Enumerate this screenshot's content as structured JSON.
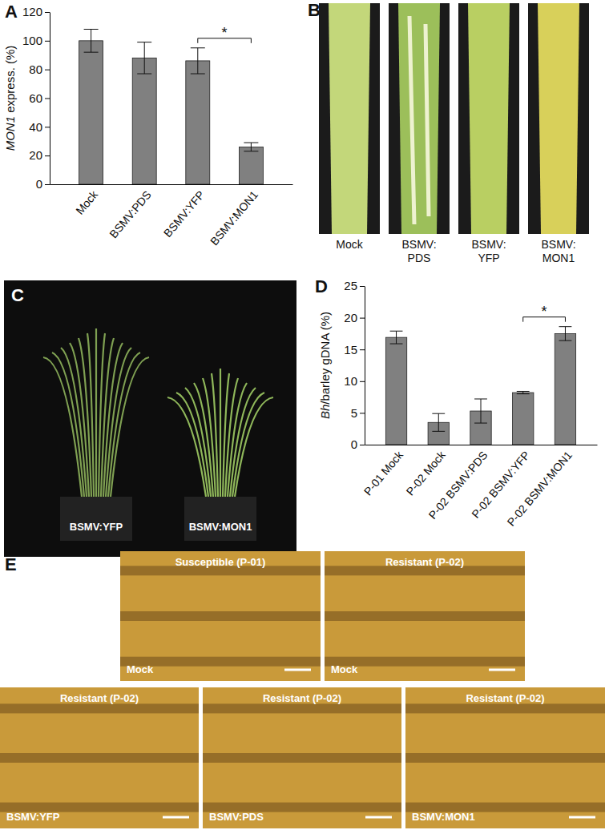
{
  "chart_data": [
    {
      "type": "bar",
      "annotations": [
        {
          "text": "A"
        },
        {
          "text": "*",
          "between": [
            "BSMV:YFP",
            "BSMV:MON1"
          ]
        }
      ],
      "y_label": "MON1 express. (%)",
      "categories": [
        "Mock",
        "BSMV:PDS",
        "BSMV:YFP",
        "BSMV:MON1"
      ],
      "values": [
        100,
        88,
        86,
        26
      ],
      "errors": [
        8,
        11,
        9,
        3
      ],
      "color": "#808080",
      "ylim": [
        0,
        120
      ],
      "yticks": [
        0,
        20,
        40,
        60,
        80,
        100,
        120
      ],
      "grid": false
    },
    {
      "type": "bar",
      "annotations": [
        {
          "text": "D"
        },
        {
          "text": "*",
          "between": [
            "P-02 BSMV:YFP",
            "P-02 BSMV:MON1"
          ]
        }
      ],
      "y_label": "Bh/barley gDNA (%)",
      "categories": [
        "P-01 Mock",
        "P-02 Mock",
        "P-02 BSMV:PDS",
        "P-02 BSMV:YFP",
        "P-02 BSMV:MON1"
      ],
      "values": [
        16.9,
        3.5,
        5.3,
        8.2,
        17.5
      ],
      "errors": [
        1.0,
        1.4,
        1.9,
        0.2,
        1.1
      ],
      "color": "#808080",
      "ylim": [
        0,
        25
      ],
      "yticks": [
        0,
        5,
        10,
        15,
        20,
        25
      ],
      "grid": false
    }
  ],
  "panels": [
    {
      "letter": "B",
      "captions": [
        [
          "Mock"
        ],
        [
          "BSMV:",
          "PDS"
        ],
        [
          "BSMV:",
          "YFP"
        ],
        [
          "BSMV:",
          "MON1"
        ]
      ]
    },
    {
      "letter": "C",
      "captions": [
        "BSMV:YFP",
        "BSMV:MON1"
      ]
    },
    {
      "letter": "E",
      "images": [
        {
          "title": "Susceptible (P-01)",
          "caption": "Mock"
        },
        {
          "title": "Resistant (P-02)",
          "caption": "Mock"
        },
        {
          "title": "Resistant (P-02)",
          "caption": "BSMV:YFP"
        },
        {
          "title": "Resistant (P-02)",
          "caption": "BSMV:PDS"
        },
        {
          "title": "Resistant (P-02)",
          "caption": "BSMV:MON1"
        }
      ]
    }
  ]
}
